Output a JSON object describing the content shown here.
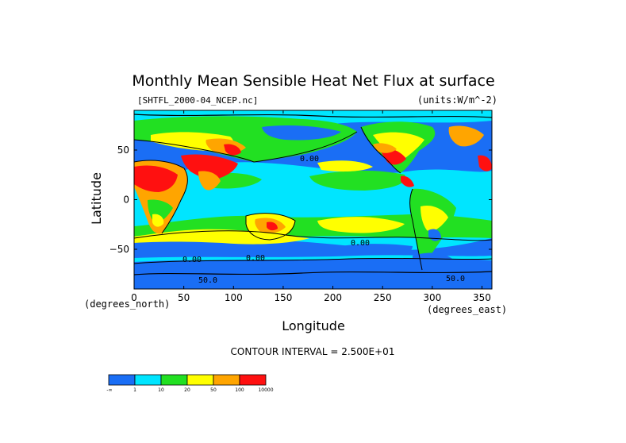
{
  "chart_data": {
    "type": "heatmap",
    "title": "Monthly Mean Sensible Heat Net Flux at surface",
    "subtitle_left": "[SHTFL_2000-04_NCEP.nc]",
    "subtitle_right": "(units:W/m^-2)",
    "xlabel": "Longitude",
    "ylabel": "Latitude",
    "x_unit_note": "(degrees_east)",
    "y_unit_note": "(degrees_north)",
    "xlim": [
      0,
      360
    ],
    "ylim": [
      -90,
      90
    ],
    "x_ticks": [
      "0",
      "50",
      "100",
      "150",
      "200",
      "250",
      "300",
      "350"
    ],
    "y_ticks": [
      "50",
      "0",
      "−50"
    ],
    "contour_interval_text": "CONTOUR INTERVAL = 2.500E+01",
    "contour_labels": [
      "0.00",
      "0.00",
      "0.00",
      "0.00",
      "50.0",
      "50.0"
    ],
    "colorbar": {
      "bins": [
        {
          "label": "-∞",
          "color": "#1a6ef5"
        },
        {
          "label": "1",
          "color": "#00e5ff"
        },
        {
          "label": "10",
          "color": "#22e022"
        },
        {
          "label": "20",
          "color": "#ffff00"
        },
        {
          "label": "50",
          "color": "#ffa500"
        },
        {
          "label": "100",
          "color": "#ff1010"
        },
        {
          "label": "10000",
          "color": ""
        }
      ]
    },
    "grid": false
  }
}
